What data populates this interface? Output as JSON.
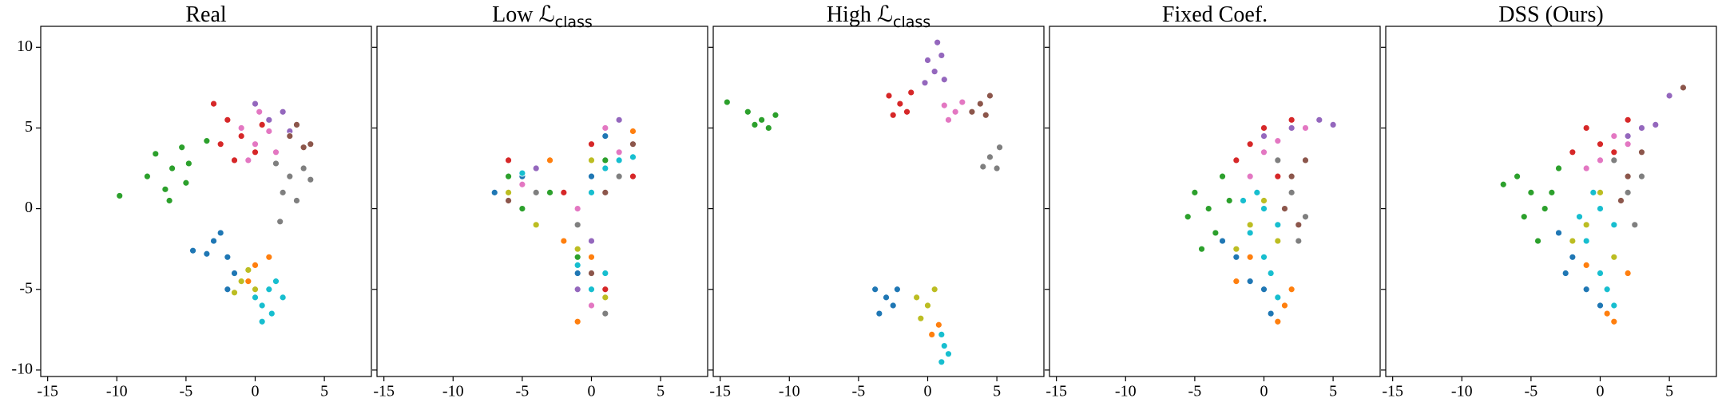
{
  "chart_data": [
    {
      "type": "scatter",
      "title": "Real",
      "xlim": [
        -15.5,
        8.4
      ],
      "ylim": [
        -10.4,
        11.3
      ],
      "xticks": [
        -15,
        -10,
        -5,
        0,
        5
      ],
      "yticks": [
        -10,
        -5,
        0,
        5,
        10
      ],
      "ytick_labels": true,
      "series": [
        {
          "color": "#2ca02c",
          "x": [
            -6,
            -7.2,
            -5,
            -6.5,
            -5.3,
            -7.8,
            -4.8,
            -6.2,
            -9.8,
            -3.5
          ],
          "y": [
            2.5,
            3.4,
            1.6,
            1.2,
            3.8,
            2,
            2.8,
            0.5,
            0.8,
            4.2
          ]
        },
        {
          "color": "#d62728",
          "x": [
            -1,
            -2,
            0,
            -1.5,
            0.5,
            -2.5,
            -3
          ],
          "y": [
            4.5,
            5.5,
            3.5,
            3,
            5.2,
            4,
            6.5
          ]
        },
        {
          "color": "#e377c2",
          "x": [
            0,
            1,
            -0.5,
            1.5,
            -1,
            0.3
          ],
          "y": [
            4,
            4.8,
            3,
            3.5,
            5,
            6
          ]
        },
        {
          "color": "#9467bd",
          "x": [
            1,
            2,
            0,
            2.5
          ],
          "y": [
            5.5,
            6,
            6.5,
            4.8
          ]
        },
        {
          "color": "#8c564b",
          "x": [
            2.5,
            3.5,
            3,
            4
          ],
          "y": [
            4.5,
            3.8,
            5.2,
            4
          ]
        },
        {
          "color": "#7f7f7f",
          "x": [
            2.5,
            3.5,
            2,
            3,
            4,
            1.5,
            1.8
          ],
          "y": [
            2,
            2.5,
            1,
            0.5,
            1.8,
            2.8,
            -0.8
          ]
        },
        {
          "color": "#1f77b4",
          "x": [
            -3,
            -2,
            -2.5,
            -3.5,
            -1.5,
            -2,
            -4.5
          ],
          "y": [
            -2,
            -3,
            -1.5,
            -2.8,
            -4,
            -5,
            -2.6
          ]
        },
        {
          "color": "#ff7f0e",
          "x": [
            0,
            -0.5,
            1,
            0.5
          ],
          "y": [
            -3.5,
            -4.5,
            -3,
            -6
          ]
        },
        {
          "color": "#bcbd22",
          "x": [
            -1,
            0,
            -0.5,
            -1.5
          ],
          "y": [
            -4.5,
            -5,
            -3.8,
            -5.2
          ]
        },
        {
          "color": "#17becf",
          "x": [
            1,
            0.5,
            1.5,
            0.5,
            2,
            0,
            1.2
          ],
          "y": [
            -5,
            -6,
            -4.5,
            -7,
            -5.5,
            -5.5,
            -6.5
          ]
        }
      ]
    },
    {
      "type": "scatter",
      "title": "Low ℒ",
      "title_subscript": "class",
      "xlim": [
        -15.5,
        8.4
      ],
      "ylim": [
        -10.4,
        11.3
      ],
      "xticks": [
        -15,
        -10,
        -5,
        0,
        5
      ],
      "yticks": [
        -10,
        -5,
        0,
        5,
        10
      ],
      "ytick_labels": false,
      "series": [
        {
          "color": "#2ca02c",
          "x": [
            -6,
            -5,
            -1,
            1,
            -3
          ],
          "y": [
            2,
            0,
            -3,
            3,
            1
          ]
        },
        {
          "color": "#d62728",
          "x": [
            -2,
            0,
            -6,
            1,
            3
          ],
          "y": [
            1,
            4,
            3,
            -5,
            2
          ]
        },
        {
          "color": "#e377c2",
          "x": [
            -5,
            1,
            -1,
            0,
            2
          ],
          "y": [
            1.5,
            5,
            0,
            -6,
            3.5
          ]
        },
        {
          "color": "#9467bd",
          "x": [
            -4,
            2,
            0,
            -1
          ],
          "y": [
            2.5,
            5.5,
            -2,
            -5
          ]
        },
        {
          "color": "#8c564b",
          "x": [
            3,
            -6,
            1,
            0
          ],
          "y": [
            4,
            0.5,
            1,
            -4
          ]
        },
        {
          "color": "#7f7f7f",
          "x": [
            -4,
            2,
            -1,
            1
          ],
          "y": [
            1,
            2,
            -1,
            -6.5
          ]
        },
        {
          "color": "#1f77b4",
          "x": [
            -5,
            0,
            -1,
            1,
            -7
          ],
          "y": [
            2,
            2,
            -4,
            4.5,
            1
          ]
        },
        {
          "color": "#ff7f0e",
          "x": [
            -3,
            3,
            0,
            -2,
            -1
          ],
          "y": [
            3,
            4.8,
            -3,
            -2,
            -7
          ]
        },
        {
          "color": "#bcbd22",
          "x": [
            -6,
            0,
            -1,
            1,
            -4
          ],
          "y": [
            1,
            3,
            -2.5,
            -5.5,
            -1
          ]
        },
        {
          "color": "#17becf",
          "x": [
            1,
            2,
            0,
            1,
            -5,
            0,
            -1,
            3
          ],
          "y": [
            2.5,
            3,
            -5,
            -4,
            2.2,
            1,
            -3.5,
            3.2
          ]
        }
      ]
    },
    {
      "type": "scatter",
      "title": "High ℒ",
      "title_subscript": "class",
      "xlim": [
        -15.5,
        8.4
      ],
      "ylim": [
        -10.4,
        11.3
      ],
      "xticks": [
        -15,
        -10,
        -5,
        0,
        5
      ],
      "yticks": [
        -10,
        -5,
        0,
        5,
        10
      ],
      "ytick_labels": false,
      "series": [
        {
          "color": "#2ca02c",
          "x": [
            -12,
            -13,
            -11.5,
            -12.5,
            -11,
            -14.5
          ],
          "y": [
            5.5,
            6,
            5,
            5.2,
            5.8,
            6.6
          ]
        },
        {
          "color": "#d62728",
          "x": [
            -2,
            -2.8,
            -1.5,
            -2.5,
            -1.2
          ],
          "y": [
            6.5,
            7,
            6,
            5.8,
            7.2
          ]
        },
        {
          "color": "#9467bd",
          "x": [
            0.5,
            0,
            1.2,
            -0.2,
            1,
            0.7
          ],
          "y": [
            8.5,
            9.2,
            8,
            7.8,
            9.5,
            10.3
          ]
        },
        {
          "color": "#e377c2",
          "x": [
            2,
            1.5,
            2.5,
            1.2
          ],
          "y": [
            6,
            5.5,
            6.6,
            6.4
          ]
        },
        {
          "color": "#8c564b",
          "x": [
            3.8,
            4.5,
            3.2,
            4.2
          ],
          "y": [
            6.5,
            7,
            6,
            5.8
          ]
        },
        {
          "color": "#7f7f7f",
          "x": [
            4.5,
            5.2,
            4,
            5
          ],
          "y": [
            3.2,
            3.8,
            2.6,
            2.5
          ]
        },
        {
          "color": "#1f77b4",
          "x": [
            -3,
            -3.8,
            -2.5,
            -3.5,
            -2.2
          ],
          "y": [
            -5.5,
            -5,
            -6,
            -6.5,
            -5
          ]
        },
        {
          "color": "#bcbd22",
          "x": [
            0,
            -0.8,
            0.5,
            -0.5
          ],
          "y": [
            -6,
            -5.5,
            -5,
            -6.8
          ]
        },
        {
          "color": "#ff7f0e",
          "x": [
            0.8,
            0.3
          ],
          "y": [
            -7.2,
            -7.8
          ]
        },
        {
          "color": "#17becf",
          "x": [
            1.2,
            1,
            1.5,
            1
          ],
          "y": [
            -8.5,
            -7.8,
            -9,
            -9.5
          ]
        }
      ]
    },
    {
      "type": "scatter",
      "title": "Fixed Coef.",
      "xlim": [
        -15.5,
        8.4
      ],
      "ylim": [
        -10.4,
        11.3
      ],
      "xticks": [
        -15,
        -10,
        -5,
        0,
        5
      ],
      "yticks": [
        -10,
        -5,
        0,
        5,
        10
      ],
      "ytick_labels": false,
      "series": [
        {
          "color": "#2ca02c",
          "x": [
            -4,
            -5,
            -3.5,
            -5.5,
            -3,
            -4.5,
            -2.5
          ],
          "y": [
            0,
            1,
            -1.5,
            -0.5,
            2,
            -2.5,
            0.5
          ]
        },
        {
          "color": "#d62728",
          "x": [
            -1,
            0,
            2,
            -2,
            1
          ],
          "y": [
            4,
            5,
            5.5,
            3,
            2
          ]
        },
        {
          "color": "#e377c2",
          "x": [
            0,
            3,
            1,
            -1
          ],
          "y": [
            3.5,
            5,
            4.2,
            2
          ]
        },
        {
          "color": "#9467bd",
          "x": [
            2,
            4,
            5,
            0
          ],
          "y": [
            5,
            5.5,
            5.2,
            4.5
          ]
        },
        {
          "color": "#8c564b",
          "x": [
            2,
            3,
            2.5,
            1.5
          ],
          "y": [
            2,
            3,
            -1,
            0
          ]
        },
        {
          "color": "#7f7f7f",
          "x": [
            2,
            3,
            1,
            2.5
          ],
          "y": [
            1,
            -0.5,
            3,
            -2
          ]
        },
        {
          "color": "#1f77b4",
          "x": [
            -2,
            -1,
            0,
            -3,
            0.5
          ],
          "y": [
            -3,
            -4.5,
            -5,
            -2,
            -6.5
          ]
        },
        {
          "color": "#ff7f0e",
          "x": [
            -1,
            1,
            2,
            -2,
            1.5
          ],
          "y": [
            -3,
            -7,
            -5,
            -4.5,
            -6
          ]
        },
        {
          "color": "#bcbd22",
          "x": [
            -1,
            0,
            -2,
            1
          ],
          "y": [
            -1,
            0.5,
            -2.5,
            -2
          ]
        },
        {
          "color": "#17becf",
          "x": [
            0,
            -1,
            1,
            0,
            -0.5,
            0.5,
            -1.5,
            1
          ],
          "y": [
            0,
            -1.5,
            -1,
            -3,
            1,
            -4,
            0.5,
            -5.5
          ]
        }
      ]
    },
    {
      "type": "scatter",
      "title": "DSS (Ours)",
      "xlim": [
        -15.5,
        8.4
      ],
      "ylim": [
        -10.4,
        11.3
      ],
      "xticks": [
        -15,
        -10,
        -5,
        0,
        5
      ],
      "yticks": [
        -10,
        -5,
        0,
        5,
        10
      ],
      "ytick_labels": false,
      "series": [
        {
          "color": "#2ca02c",
          "x": [
            -5,
            -6,
            -4,
            -5.5,
            -3,
            -4.5,
            -7,
            -3.5
          ],
          "y": [
            1,
            2,
            0,
            -0.5,
            2.5,
            -2,
            1.5,
            1
          ]
        },
        {
          "color": "#d62728",
          "x": [
            -1,
            0,
            1,
            -2,
            2
          ],
          "y": [
            5,
            4,
            3.5,
            3.5,
            5.5
          ]
        },
        {
          "color": "#e377c2",
          "x": [
            0,
            1,
            -1,
            2
          ],
          "y": [
            3,
            4.5,
            2.5,
            4
          ]
        },
        {
          "color": "#9467bd",
          "x": [
            2,
            3,
            4,
            5
          ],
          "y": [
            4.5,
            5,
            5.2,
            7
          ]
        },
        {
          "color": "#8c564b",
          "x": [
            2,
            3,
            1.5,
            6
          ],
          "y": [
            2,
            3.5,
            0.5,
            7.5
          ]
        },
        {
          "color": "#7f7f7f",
          "x": [
            2,
            3,
            1,
            2.5
          ],
          "y": [
            1,
            2,
            3,
            -1
          ]
        },
        {
          "color": "#1f77b4",
          "x": [
            -2,
            -1,
            -3,
            0,
            -2.5
          ],
          "y": [
            -3,
            -5,
            -1.5,
            -6,
            -4
          ]
        },
        {
          "color": "#ff7f0e",
          "x": [
            -1,
            1,
            0.5,
            2
          ],
          "y": [
            -3.5,
            -7,
            -6.5,
            -4
          ]
        },
        {
          "color": "#bcbd22",
          "x": [
            -1,
            0,
            -2,
            1
          ],
          "y": [
            -1,
            1,
            -2,
            -3
          ]
        },
        {
          "color": "#17becf",
          "x": [
            0,
            -1,
            1,
            0,
            -0.5,
            0.5,
            -1.5,
            1
          ],
          "y": [
            0,
            -2,
            -1,
            -4,
            1,
            -5,
            -0.5,
            -6
          ]
        }
      ]
    }
  ]
}
